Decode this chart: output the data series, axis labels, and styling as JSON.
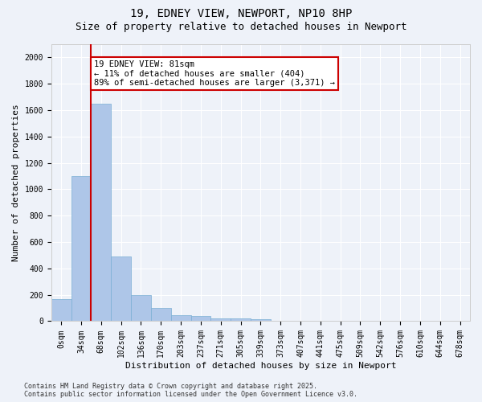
{
  "title": "19, EDNEY VIEW, NEWPORT, NP10 8HP",
  "subtitle": "Size of property relative to detached houses in Newport",
  "xlabel": "Distribution of detached houses by size in Newport",
  "ylabel": "Number of detached properties",
  "bar_values": [
    170,
    1100,
    1650,
    490,
    200,
    100,
    45,
    40,
    22,
    20,
    15,
    0,
    0,
    0,
    0,
    0,
    0,
    0,
    0,
    0
  ],
  "categories": [
    "0sqm",
    "34sqm",
    "68sqm",
    "102sqm",
    "136sqm",
    "170sqm",
    "203sqm",
    "237sqm",
    "271sqm",
    "305sqm",
    "339sqm",
    "373sqm",
    "407sqm",
    "441sqm",
    "475sqm",
    "509sqm",
    "542sqm",
    "576sqm",
    "610sqm",
    "644sqm",
    "678sqm"
  ],
  "bar_color": "#aec6e8",
  "bar_edge_color": "#7aafd4",
  "vline_color": "#cc0000",
  "annotation_text": "19 EDNEY VIEW: 81sqm\n← 11% of detached houses are smaller (404)\n89% of semi-detached houses are larger (3,371) →",
  "annotation_box_color": "#cc0000",
  "annotation_fill": "white",
  "ylim": [
    0,
    2100
  ],
  "yticks": [
    0,
    200,
    400,
    600,
    800,
    1000,
    1200,
    1400,
    1600,
    1800,
    2000
  ],
  "background_color": "#eef2f9",
  "grid_color": "white",
  "footer_line1": "Contains HM Land Registry data © Crown copyright and database right 2025.",
  "footer_line2": "Contains public sector information licensed under the Open Government Licence v3.0.",
  "title_fontsize": 10,
  "subtitle_fontsize": 9,
  "xlabel_fontsize": 8,
  "ylabel_fontsize": 8,
  "tick_fontsize": 7,
  "annotation_fontsize": 7.5,
  "footer_fontsize": 6
}
